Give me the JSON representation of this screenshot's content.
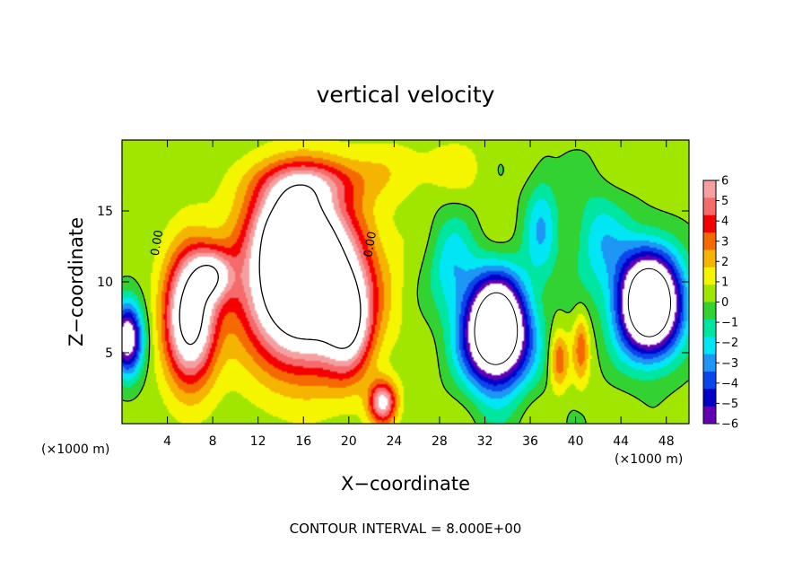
{
  "chart_data": {
    "type": "heatmap",
    "title": "vertical velocity",
    "xlabel": "X−coordinate",
    "ylabel": "Z−coordinate",
    "x_unit_left": "(×1000 m)",
    "x_unit_right": "(×1000 m)",
    "xlim": [
      0,
      50
    ],
    "ylim": [
      0,
      20
    ],
    "x_ticks": [
      4,
      8,
      12,
      16,
      20,
      24,
      28,
      32,
      36,
      40,
      44,
      48
    ],
    "y_ticks": [
      5,
      10,
      15
    ],
    "colorbar": {
      "ticks": [
        "6",
        "5",
        "4",
        "3",
        "2",
        "1",
        "0",
        "−1",
        "−2",
        "−3",
        "−4",
        "−5",
        "−6"
      ],
      "range": [
        -6,
        6
      ],
      "colors": [
        "#f5a0a0",
        "#f56a6a",
        "#f50000",
        "#f56a00",
        "#f5b400",
        "#f5f500",
        "#a0e600",
        "#32d232",
        "#00e6a0",
        "#00e6f5",
        "#1e96f5",
        "#0a46eb",
        "#0000c8",
        "#6400b4"
      ]
    },
    "contour_interval_text": "CONTOUR INTERVAL = 8.000E+00",
    "contour_labels": [
      "0.00",
      "0.00"
    ],
    "features": [
      {
        "kind": "updraft",
        "x": 16,
        "z": 10,
        "sx": 5.0,
        "sz": 5.5,
        "w": 13
      },
      {
        "kind": "updraft",
        "x": 15,
        "z": 14,
        "sx": 3.0,
        "sz": 3.0,
        "w": 5
      },
      {
        "kind": "updraft",
        "x": 6,
        "z": 7.5,
        "sx": 2.2,
        "sz": 4.5,
        "w": 9
      },
      {
        "kind": "updraft",
        "x": 8,
        "z": 10.5,
        "sx": 1.8,
        "sz": 1.8,
        "w": 5
      },
      {
        "kind": "updraft",
        "x": 20,
        "z": 7,
        "sx": 2.0,
        "sz": 3.5,
        "w": 5
      },
      {
        "kind": "updraft",
        "x": 23,
        "z": 1.5,
        "sx": 1.2,
        "sz": 1.5,
        "w": 6
      },
      {
        "kind": "updraft",
        "x": 16.5,
        "z": 17,
        "sx": 4.5,
        "sz": 1.6,
        "w": 3
      },
      {
        "kind": "downdraft",
        "x": 33,
        "z": 6.5,
        "sx": 2.8,
        "sz": 3.8,
        "w": -13
      },
      {
        "kind": "downdraft",
        "x": 46.5,
        "z": 8.5,
        "sx": 2.8,
        "sz": 3.6,
        "w": -13
      },
      {
        "kind": "downdraft",
        "x": 0.5,
        "z": 6.0,
        "sx": 1.3,
        "sz": 2.5,
        "w": -8
      },
      {
        "kind": "downdraft",
        "x": 37,
        "z": 14,
        "sx": 1.5,
        "sz": 4.5,
        "w": -2.5
      },
      {
        "kind": "downdraft",
        "x": 29,
        "z": 11,
        "sx": 2.0,
        "sz": 3.5,
        "w": -2.5
      },
      {
        "kind": "downdraft",
        "x": 42,
        "z": 13,
        "sx": 2.5,
        "sz": 3.5,
        "w": -2.5
      },
      {
        "kind": "updraft",
        "x": 38.5,
        "z": 4.5,
        "sx": 0.8,
        "sz": 2.0,
        "w": 3
      },
      {
        "kind": "updraft",
        "x": 40.5,
        "z": 5.5,
        "sx": 0.7,
        "sz": 2.5,
        "w": 2.5
      },
      {
        "kind": "updraft",
        "x": 26,
        "z": 18,
        "sx": 6.0,
        "sz": 2.0,
        "w": 1
      }
    ]
  }
}
